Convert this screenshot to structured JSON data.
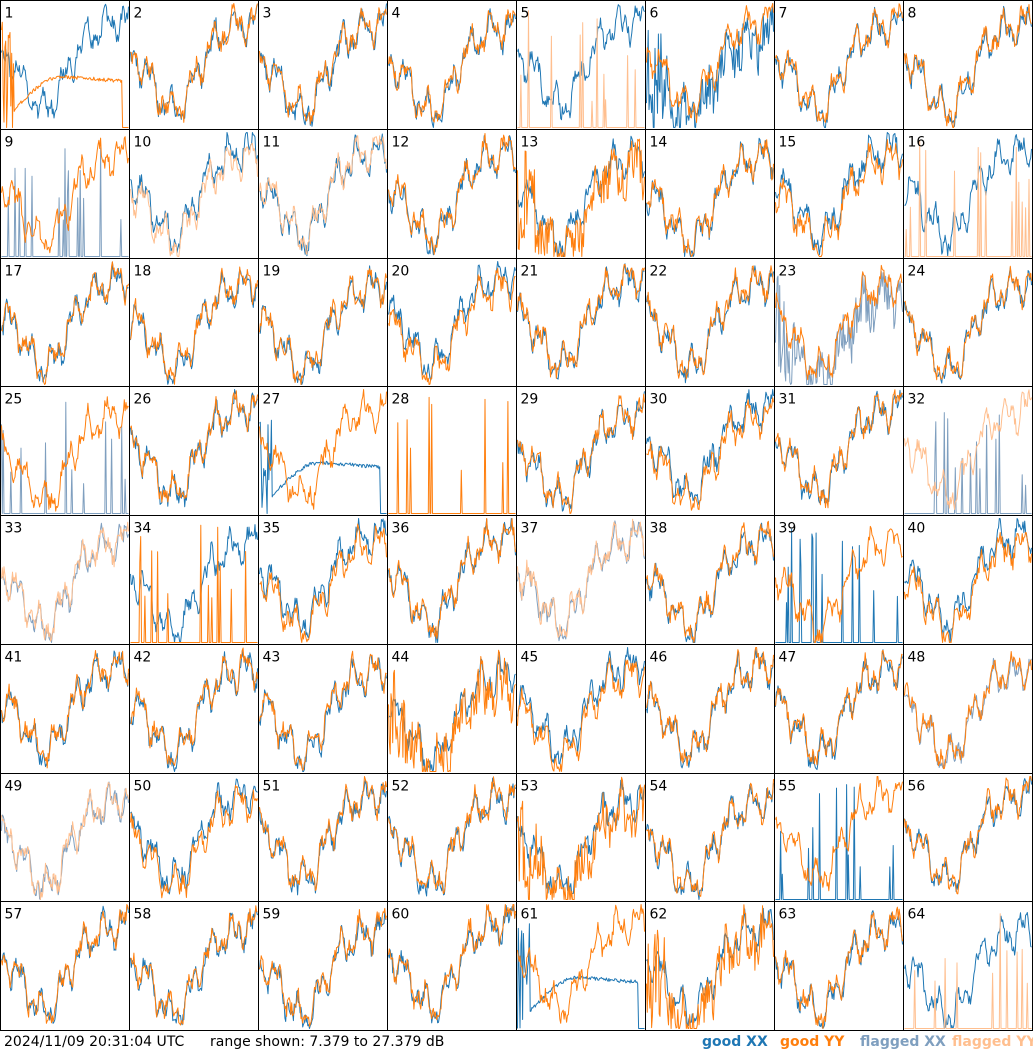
{
  "chart_data": {
    "type": "line",
    "layout_description": "8x8 grid of small spectra panels, one per antenna, numbered 1-64",
    "value_range_db": [
      7.379,
      27.379
    ],
    "legend": [
      {
        "key": "good_xx",
        "label": "good XX",
        "color": "#1f77b4"
      },
      {
        "key": "good_yy",
        "label": "good YY",
        "color": "#ff7f0e"
      },
      {
        "key": "flagged_xx",
        "label": "flagged XX",
        "color": "#7f9fbf"
      },
      {
        "key": "flagged_yy",
        "label": "flagged YY",
        "color": "#ffbf8f"
      }
    ],
    "panels": [
      {
        "id": 1,
        "xx": "normal",
        "yy": "decay"
      },
      {
        "id": 2,
        "xx": "normal",
        "yy": "normal"
      },
      {
        "id": 3,
        "xx": "normal",
        "yy": "normal"
      },
      {
        "id": 4,
        "xx": "normal",
        "yy": "normal"
      },
      {
        "id": 5,
        "xx": "normal",
        "yy": "spikes_flagged"
      },
      {
        "id": 6,
        "xx": "noisy",
        "yy": "normal"
      },
      {
        "id": 7,
        "xx": "normal",
        "yy": "normal"
      },
      {
        "id": 8,
        "xx": "normal",
        "yy": "normal"
      },
      {
        "id": 9,
        "xx": "spikes_flagged",
        "yy": "normal"
      },
      {
        "id": 10,
        "xx": "normal",
        "yy": "normal_flagged"
      },
      {
        "id": 11,
        "xx": "normal",
        "yy": "normal_flagged"
      },
      {
        "id": 12,
        "xx": "normal",
        "yy": "normal"
      },
      {
        "id": 13,
        "xx": "normal",
        "yy": "noisy"
      },
      {
        "id": 14,
        "xx": "normal",
        "yy": "normal"
      },
      {
        "id": 15,
        "xx": "normal",
        "yy": "normal"
      },
      {
        "id": 16,
        "xx": "normal",
        "yy": "spikes_flagged"
      },
      {
        "id": 17,
        "xx": "normal",
        "yy": "normal"
      },
      {
        "id": 18,
        "xx": "normal",
        "yy": "normal"
      },
      {
        "id": 19,
        "xx": "normal",
        "yy": "normal"
      },
      {
        "id": 20,
        "xx": "normal",
        "yy": "normal"
      },
      {
        "id": 21,
        "xx": "normal",
        "yy": "normal"
      },
      {
        "id": 22,
        "xx": "normal",
        "yy": "normal"
      },
      {
        "id": 23,
        "xx": "noisy_flagged",
        "yy": "normal"
      },
      {
        "id": 24,
        "xx": "normal",
        "yy": "normal"
      },
      {
        "id": 25,
        "xx": "spikes_flagged",
        "yy": "normal"
      },
      {
        "id": 26,
        "xx": "normal",
        "yy": "normal"
      },
      {
        "id": 27,
        "xx": "decay",
        "yy": "normal"
      },
      {
        "id": 28,
        "xx": "none",
        "yy": "spikes"
      },
      {
        "id": 29,
        "xx": "normal",
        "yy": "normal"
      },
      {
        "id": 30,
        "xx": "normal",
        "yy": "normal"
      },
      {
        "id": 31,
        "xx": "normal",
        "yy": "normal"
      },
      {
        "id": 32,
        "xx": "spikes_flagged",
        "yy": "normal_flagged"
      },
      {
        "id": 33,
        "xx": "normal_flagged",
        "yy": "normal_flagged"
      },
      {
        "id": 34,
        "xx": "normal",
        "yy": "spikes"
      },
      {
        "id": 35,
        "xx": "normal",
        "yy": "normal"
      },
      {
        "id": 36,
        "xx": "normal",
        "yy": "normal"
      },
      {
        "id": 37,
        "xx": "normal_flagged",
        "yy": "normal_flagged"
      },
      {
        "id": 38,
        "xx": "normal",
        "yy": "normal"
      },
      {
        "id": 39,
        "xx": "spikes",
        "yy": "normal"
      },
      {
        "id": 40,
        "xx": "normal",
        "yy": "normal"
      },
      {
        "id": 41,
        "xx": "normal",
        "yy": "normal"
      },
      {
        "id": 42,
        "xx": "normal",
        "yy": "normal"
      },
      {
        "id": 43,
        "xx": "normal",
        "yy": "normal"
      },
      {
        "id": 44,
        "xx": "normal",
        "yy": "noisy"
      },
      {
        "id": 45,
        "xx": "normal",
        "yy": "normal"
      },
      {
        "id": 46,
        "xx": "normal",
        "yy": "normal"
      },
      {
        "id": 47,
        "xx": "normal",
        "yy": "normal"
      },
      {
        "id": 48,
        "xx": "normal_flagged",
        "yy": "normal"
      },
      {
        "id": 49,
        "xx": "normal_flagged",
        "yy": "normal_flagged"
      },
      {
        "id": 50,
        "xx": "normal",
        "yy": "normal"
      },
      {
        "id": 51,
        "xx": "normal",
        "yy": "normal"
      },
      {
        "id": 52,
        "xx": "normal",
        "yy": "normal"
      },
      {
        "id": 53,
        "xx": "normal",
        "yy": "noisy"
      },
      {
        "id": 54,
        "xx": "normal",
        "yy": "normal"
      },
      {
        "id": 55,
        "xx": "spikes",
        "yy": "normal"
      },
      {
        "id": 56,
        "xx": "normal",
        "yy": "normal"
      },
      {
        "id": 57,
        "xx": "normal",
        "yy": "normal"
      },
      {
        "id": 58,
        "xx": "normal",
        "yy": "normal"
      },
      {
        "id": 59,
        "xx": "normal",
        "yy": "normal"
      },
      {
        "id": 60,
        "xx": "normal",
        "yy": "normal"
      },
      {
        "id": 61,
        "xx": "decay",
        "yy": "normal"
      },
      {
        "id": 62,
        "xx": "normal",
        "yy": "noisy"
      },
      {
        "id": 63,
        "xx": "normal",
        "yy": "normal"
      },
      {
        "id": 64,
        "xx": "normal",
        "yy": "spikes_flagged"
      }
    ]
  },
  "footer": {
    "timestamp": "2024/11/09 20:31:04 UTC",
    "range_text": "range shown: 7.379 to 27.379 dB"
  }
}
